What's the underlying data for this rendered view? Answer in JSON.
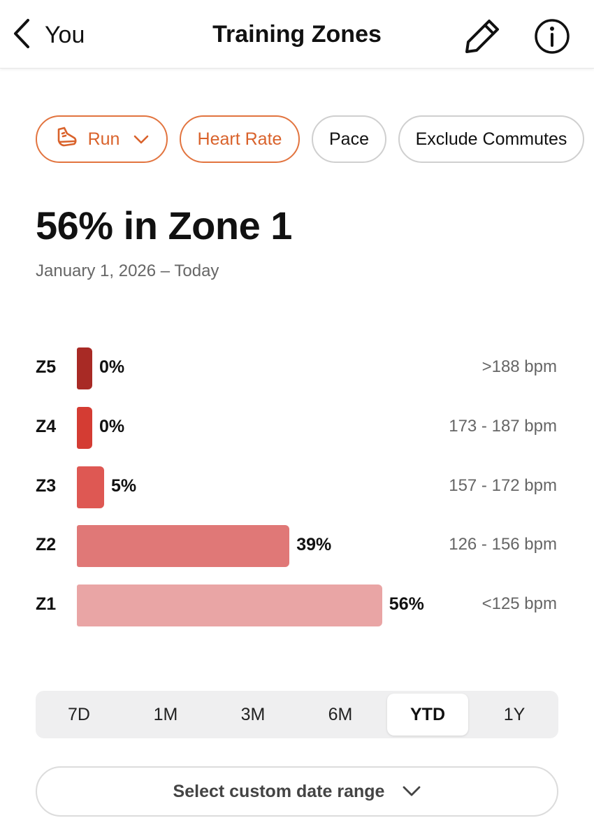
{
  "header": {
    "back_label": "You",
    "title": "Training Zones",
    "icons": [
      "chevron-left-icon",
      "pencil-icon",
      "info-icon"
    ]
  },
  "filters": {
    "sport": "Run",
    "metric_active": "Heart Rate",
    "metric_other": "Pace",
    "exclude": "Exclude Commutes",
    "accent_color": "#e2743f"
  },
  "summary": {
    "headline": "56% in Zone 1",
    "date_range": "January 1, 2026 – Today"
  },
  "zones": [
    {
      "label": "Z5",
      "pct_text": "0%",
      "pct": 0,
      "range": ">188 bpm",
      "color": "#a82a25"
    },
    {
      "label": "Z4",
      "pct_text": "0%",
      "pct": 0,
      "range": "173 - 187 bpm",
      "color": "#d43c33"
    },
    {
      "label": "Z3",
      "pct_text": "5%",
      "pct": 5,
      "range": "157 - 172 bpm",
      "color": "#de5853"
    },
    {
      "label": "Z2",
      "pct_text": "39%",
      "pct": 39,
      "range": "126 - 156 bpm",
      "color": "#e07877"
    },
    {
      "label": "Z1",
      "pct_text": "56%",
      "pct": 56,
      "range": "<125 bpm",
      "color": "#e9a5a5"
    }
  ],
  "periods": {
    "items": [
      "7D",
      "1M",
      "3M",
      "6M",
      "YTD",
      "1Y"
    ],
    "selected": "YTD"
  },
  "custom_range": {
    "label": "Select custom date range"
  }
}
